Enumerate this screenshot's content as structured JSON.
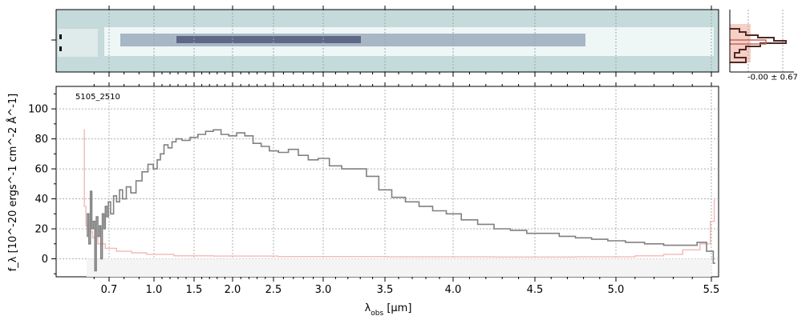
{
  "chart_data": {
    "type": "line",
    "object_id": "5105_2510",
    "xlabel": "λ_obs [μm]",
    "xlabel_main": "λ",
    "xlabel_sub": "obs",
    "xlabel_unit": " [μm]",
    "ylabel": "f_λ [10^-20 ergs^-1 cm^-2 Å^-1]",
    "x_scale": "nonlinear (spectral sampling)",
    "x_range": [
      0.52,
      5.53
    ],
    "ylim": [
      -12,
      115
    ],
    "x_ticks": [
      0.7,
      1.0,
      1.5,
      2.0,
      2.5,
      3.0,
      3.5,
      4.0,
      4.5,
      5.0,
      5.5
    ],
    "x_tick_labels": [
      "0.7",
      "1.0",
      "1.5",
      "2.0",
      "2.5",
      "3.0",
      "3.5",
      "4.0",
      "4.5",
      "5.0",
      "5.5"
    ],
    "y_ticks": [
      0,
      20,
      40,
      60,
      80,
      100
    ],
    "y_tick_labels": [
      "0",
      "20",
      "40",
      "60",
      "80",
      "100"
    ],
    "grid": true,
    "series": [
      {
        "color": "#808080",
        "points": [
          [
            0.55,
            15
          ],
          [
            0.56,
            30
          ],
          [
            0.57,
            10
          ],
          [
            0.58,
            45
          ],
          [
            0.59,
            20
          ],
          [
            0.6,
            25
          ],
          [
            0.61,
            -8
          ],
          [
            0.62,
            28
          ],
          [
            0.63,
            15
          ],
          [
            0.64,
            22
          ],
          [
            0.65,
            0
          ],
          [
            0.66,
            30
          ],
          [
            0.67,
            20
          ],
          [
            0.68,
            35
          ],
          [
            0.69,
            28
          ],
          [
            0.7,
            38
          ],
          [
            0.72,
            30
          ],
          [
            0.74,
            42
          ],
          [
            0.76,
            38
          ],
          [
            0.78,
            46
          ],
          [
            0.8,
            40
          ],
          [
            0.83,
            48
          ],
          [
            0.86,
            44
          ],
          [
            0.9,
            52
          ],
          [
            0.94,
            58
          ],
          [
            0.98,
            63
          ],
          [
            1.02,
            60
          ],
          [
            1.06,
            66
          ],
          [
            1.1,
            70
          ],
          [
            1.15,
            76
          ],
          [
            1.2,
            74
          ],
          [
            1.25,
            78
          ],
          [
            1.3,
            80
          ],
          [
            1.4,
            79
          ],
          [
            1.5,
            81
          ],
          [
            1.6,
            83
          ],
          [
            1.7,
            85
          ],
          [
            1.8,
            86
          ],
          [
            1.9,
            83
          ],
          [
            2.0,
            82
          ],
          [
            2.1,
            84
          ],
          [
            2.2,
            82
          ],
          [
            2.3,
            77
          ],
          [
            2.4,
            75
          ],
          [
            2.5,
            72
          ],
          [
            2.6,
            71
          ],
          [
            2.7,
            73
          ],
          [
            2.8,
            69
          ],
          [
            2.9,
            66
          ],
          [
            3.0,
            67
          ],
          [
            3.1,
            62
          ],
          [
            3.2,
            60
          ],
          [
            3.3,
            60
          ],
          [
            3.4,
            55
          ],
          [
            3.5,
            46
          ],
          [
            3.6,
            41
          ],
          [
            3.7,
            38
          ],
          [
            3.8,
            35
          ],
          [
            3.9,
            32
          ],
          [
            4.0,
            30
          ],
          [
            4.1,
            26
          ],
          [
            4.2,
            23
          ],
          [
            4.3,
            20
          ],
          [
            4.4,
            19
          ],
          [
            4.5,
            17
          ],
          [
            4.6,
            17
          ],
          [
            4.7,
            15
          ],
          [
            4.8,
            14
          ],
          [
            4.9,
            13
          ],
          [
            5.0,
            12
          ],
          [
            5.1,
            11
          ],
          [
            5.2,
            10
          ],
          [
            5.3,
            9
          ],
          [
            5.4,
            9
          ],
          [
            5.45,
            11
          ],
          [
            5.5,
            5
          ],
          [
            5.52,
            -3
          ]
        ]
      },
      {
        "color": "#f4b8b8",
        "points": [
          [
            0.53,
            86
          ],
          [
            0.54,
            35
          ],
          [
            0.55,
            22
          ],
          [
            0.58,
            18
          ],
          [
            0.6,
            14
          ],
          [
            0.65,
            10
          ],
          [
            0.7,
            7
          ],
          [
            0.8,
            5
          ],
          [
            0.9,
            4
          ],
          [
            1.0,
            3
          ],
          [
            1.5,
            2
          ],
          [
            2.0,
            1.8
          ],
          [
            3.0,
            1.5
          ],
          [
            4.0,
            1.3
          ],
          [
            4.5,
            1.2
          ],
          [
            5.0,
            1.3
          ],
          [
            5.2,
            2
          ],
          [
            5.3,
            3
          ],
          [
            5.4,
            6
          ],
          [
            5.48,
            10
          ],
          [
            5.51,
            25
          ],
          [
            5.52,
            39
          ]
        ]
      }
    ],
    "inset_histogram_label": "-0.00 ± 0.67"
  }
}
